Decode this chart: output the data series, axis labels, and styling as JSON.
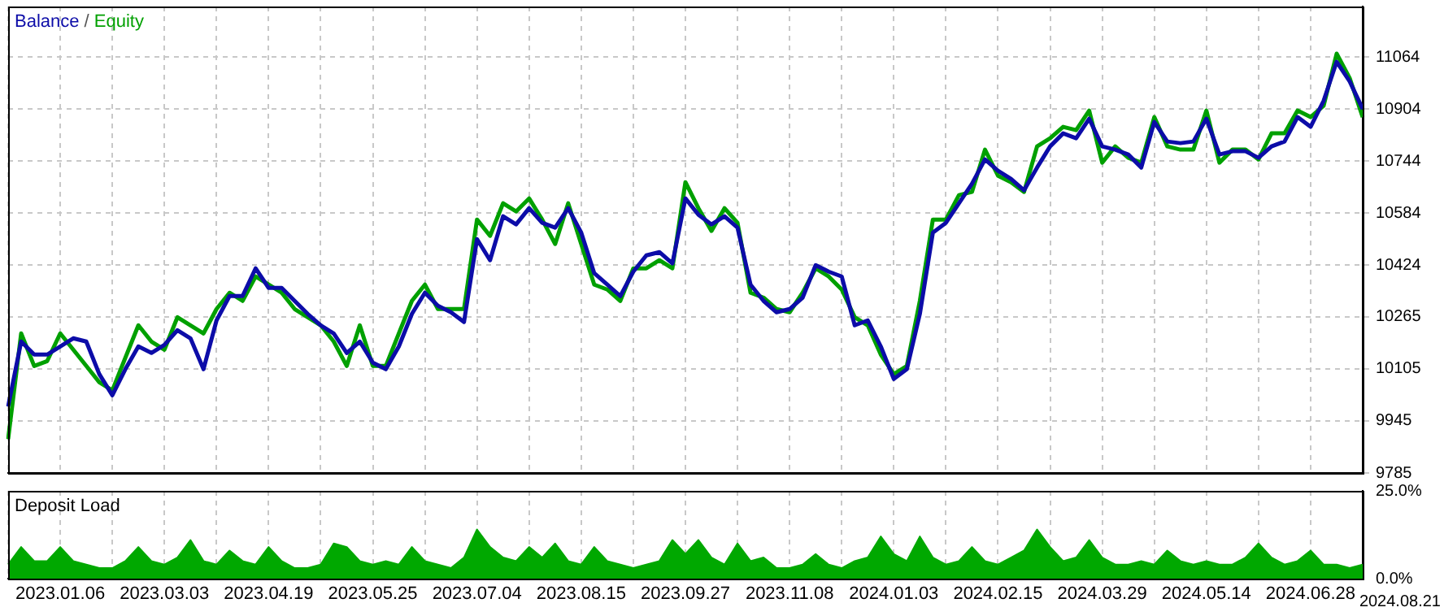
{
  "chart_data": [
    {
      "type": "line",
      "categories": [
        null,
        null,
        null,
        null,
        "2023.01.06",
        null,
        null,
        null,
        null,
        null,
        null,
        null,
        "2023.03.03",
        null,
        null,
        null,
        null,
        null,
        null,
        null,
        "2023.04.19",
        null,
        null,
        null,
        null,
        null,
        null,
        null,
        "2023.05.25",
        null,
        null,
        null,
        null,
        null,
        null,
        null,
        "2023.07.04",
        null,
        null,
        null,
        null,
        null,
        null,
        null,
        "2023.08.15",
        null,
        null,
        null,
        null,
        null,
        null,
        null,
        "2023.09.27",
        null,
        null,
        null,
        null,
        null,
        null,
        null,
        "2023.11.08",
        null,
        null,
        null,
        null,
        null,
        null,
        null,
        "2024.01.03",
        null,
        null,
        null,
        null,
        null,
        null,
        null,
        "2024.02.15",
        null,
        null,
        null,
        null,
        null,
        null,
        null,
        "2024.03.29",
        null,
        null,
        null,
        null,
        null,
        null,
        null,
        "2024.05.14",
        null,
        null,
        null,
        null,
        null,
        null,
        null,
        "2024.06.28",
        null,
        null,
        null,
        null
      ],
      "series": [
        {
          "name": "Equity",
          "color": "#00a000",
          "values": [
            9889,
            10214,
            10114,
            10129,
            10214,
            10164,
            10114,
            10064,
            10039,
            10139,
            10239,
            10189,
            10164,
            10264,
            10239,
            10214,
            10289,
            10339,
            10314,
            10389,
            10364,
            10339,
            10289,
            10264,
            10239,
            10189,
            10114,
            10239,
            10114,
            10114,
            10214,
            10314,
            10364,
            10289,
            10289,
            10289,
            10564,
            10514,
            10614,
            10589,
            10629,
            10564,
            10489,
            10614,
            10489,
            10364,
            10349,
            10314,
            10414,
            10414,
            10439,
            10414,
            10679,
            10599,
            10529,
            10599,
            10554,
            10339,
            10324,
            10289,
            10279,
            10339,
            10414,
            10389,
            10349,
            10264,
            10239,
            10149,
            10089,
            10114,
            10314,
            10564,
            10564,
            10639,
            10649,
            10779,
            10699,
            10679,
            10649,
            10789,
            10814,
            10849,
            10839,
            10899,
            10739,
            10789,
            10754,
            10739,
            10879,
            10789,
            10779,
            10779,
            10899,
            10739,
            10779,
            10779,
            10749,
            10829,
            10829,
            10899,
            10879,
            10914,
            11074,
            10999,
            10879
          ]
        },
        {
          "name": "Balance",
          "color": "#0c0ca8",
          "values": [
            9989,
            10189,
            10149,
            10149,
            10174,
            10199,
            10189,
            10089,
            10024,
            10104,
            10174,
            10154,
            10179,
            10224,
            10199,
            10104,
            10254,
            10329,
            10329,
            10414,
            10354,
            10354,
            10314,
            10274,
            10239,
            10214,
            10154,
            10189,
            10124,
            10104,
            10174,
            10274,
            10339,
            10299,
            10279,
            10249,
            10504,
            10439,
            10574,
            10549,
            10599,
            10554,
            10539,
            10599,
            10524,
            10399,
            10364,
            10329,
            10404,
            10454,
            10464,
            10429,
            10629,
            10579,
            10549,
            10574,
            10539,
            10364,
            10314,
            10279,
            10289,
            10324,
            10424,
            10404,
            10389,
            10239,
            10254,
            10174,
            10074,
            10104,
            10274,
            10524,
            10554,
            10614,
            10674,
            10749,
            10714,
            10689,
            10654,
            10724,
            10789,
            10829,
            10814,
            10874,
            10789,
            10779,
            10764,
            10724,
            10864,
            10804,
            10799,
            10804,
            10874,
            10764,
            10774,
            10774,
            10754,
            10789,
            10804,
            10879,
            10849,
            10929,
            11049,
            10989,
            10904
          ]
        }
      ],
      "ylim": [
        9785,
        11219
      ],
      "yticks": [
        9785,
        9945,
        10105,
        10265,
        10424,
        10584,
        10744,
        10904,
        11064
      ],
      "grid": true,
      "legend": "top left",
      "tick_labels": "y",
      "annotations": [
        "/"
      ]
    },
    {
      "type": "area",
      "title": "Deposit Load",
      "categories": [
        null,
        null,
        null,
        null,
        "2023.01.06",
        null,
        null,
        null,
        null,
        null,
        null,
        null,
        "2023.03.03",
        null,
        null,
        null,
        null,
        null,
        null,
        null,
        "2023.04.19",
        null,
        null,
        null,
        null,
        null,
        null,
        null,
        "2023.05.25",
        null,
        null,
        null,
        null,
        null,
        null,
        null,
        "2023.07.04",
        null,
        null,
        null,
        null,
        null,
        null,
        null,
        "2023.08.15",
        null,
        null,
        null,
        null,
        null,
        null,
        null,
        "2023.09.27",
        null,
        null,
        null,
        null,
        null,
        null,
        null,
        "2023.11.08",
        null,
        null,
        null,
        null,
        null,
        null,
        null,
        "2024.01.03",
        null,
        null,
        null,
        null,
        null,
        null,
        null,
        "2024.02.15",
        null,
        null,
        null,
        null,
        null,
        null,
        null,
        "2024.03.29",
        null,
        null,
        null,
        null,
        null,
        null,
        null,
        "2024.05.14",
        null,
        null,
        null,
        null,
        null,
        null,
        null,
        "2024.06.28",
        null,
        null,
        null,
        null
      ],
      "series": [
        {
          "color": "#00a800",
          "values": [
            4,
            9,
            5,
            5,
            9,
            5,
            4,
            3,
            3,
            5,
            9,
            5,
            4,
            6,
            11,
            5,
            4,
            8,
            5,
            4,
            9,
            5,
            3,
            3,
            4,
            10,
            9,
            5,
            4,
            5,
            4,
            9,
            5,
            4,
            3,
            6,
            14,
            9,
            6,
            5,
            9,
            6,
            10,
            5,
            4,
            9,
            5,
            4,
            3,
            4,
            5,
            11,
            7,
            11,
            6,
            4,
            10,
            5,
            6,
            3,
            3,
            4,
            7,
            4,
            3,
            5,
            6,
            12,
            7,
            5,
            12,
            6,
            4,
            5,
            9,
            5,
            4,
            6,
            8,
            14,
            9,
            5,
            6,
            11,
            6,
            4,
            4,
            5,
            4,
            8,
            5,
            4,
            5,
            4,
            4,
            6,
            10,
            6,
            4,
            5,
            8,
            4,
            4,
            3,
            4
          ]
        }
      ],
      "ylim": [
        0,
        25
      ],
      "yticks": [
        {
          "value": 0,
          "label": "0.0%"
        },
        {
          "value": 25,
          "label": "25.0%"
        }
      ],
      "grid": "x",
      "annotations": [
        "2024.08.21"
      ]
    }
  ]
}
